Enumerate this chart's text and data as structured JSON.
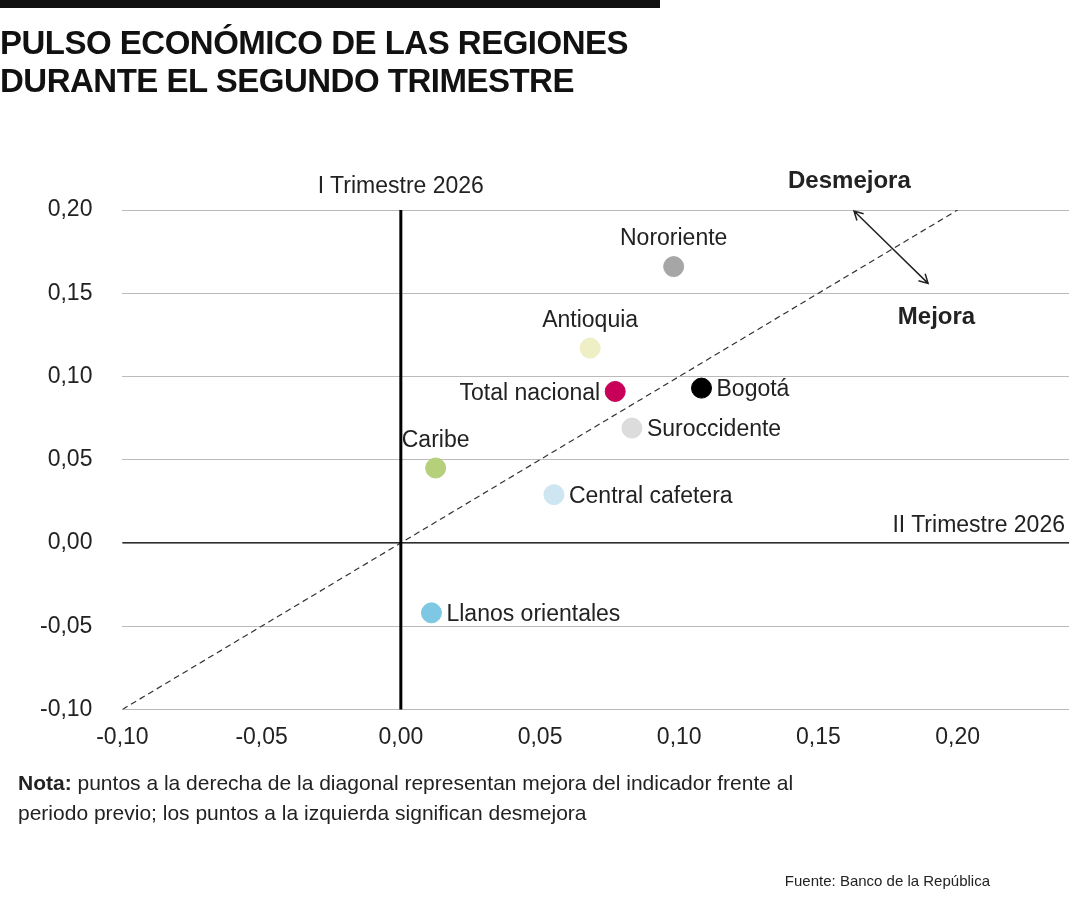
{
  "chart_data": {
    "type": "scatter",
    "title": "PULSO ECONÓMICO DE LAS REGIONES DURANTE EL SEGUNDO TRIMESTRE",
    "xlim": [
      -0.1,
      0.24
    ],
    "ylim": [
      -0.1,
      0.2
    ],
    "xticks": [
      {
        "value": -0.1,
        "label": "-0,10"
      },
      {
        "value": -0.05,
        "label": "-0,05"
      },
      {
        "value": 0,
        "label": "0,00"
      },
      {
        "value": 0.05,
        "label": "0,05"
      },
      {
        "value": 0.1,
        "label": "0,10"
      },
      {
        "value": 0.15,
        "label": "0,15"
      },
      {
        "value": 0.2,
        "label": "0,20"
      }
    ],
    "yticks": [
      {
        "value": -0.1,
        "label": "-0,10"
      },
      {
        "value": -0.05,
        "label": "-0,05"
      },
      {
        "value": 0,
        "label": "0,00"
      },
      {
        "value": 0.05,
        "label": "0,05"
      },
      {
        "value": 0.1,
        "label": "0,10"
      },
      {
        "value": 0.15,
        "label": "0,15"
      },
      {
        "value": 0.2,
        "label": "0,20"
      }
    ],
    "grid": "y",
    "legend": false,
    "marker": "circle",
    "series": [
      {
        "name": "Nororiente",
        "color": "#a6a6a6",
        "x": [
          0.098
        ],
        "values": [
          0.166
        ]
      },
      {
        "name": "Antioquia",
        "color": "#eeefc4",
        "x": [
          0.068
        ],
        "values": [
          0.117
        ]
      },
      {
        "name": "Total nacional",
        "color": "#c8005a",
        "x": [
          0.077
        ],
        "values": [
          0.091
        ]
      },
      {
        "name": "Bogotá",
        "color": "#000000",
        "x": [
          0.108
        ],
        "values": [
          0.093
        ]
      },
      {
        "name": "Suroccidente",
        "color": "#dcdcdc",
        "x": [
          0.083
        ],
        "values": [
          0.069
        ]
      },
      {
        "name": "Caribe",
        "color": "#b5cf7a",
        "x": [
          0.0125
        ],
        "values": [
          0.045
        ]
      },
      {
        "name": "Central cafetera",
        "color": "#cde6f2",
        "x": [
          0.055
        ],
        "values": [
          0.029
        ]
      },
      {
        "name": "Llanos orientales",
        "color": "#7ec8e3",
        "x": [
          0.011
        ],
        "values": [
          -0.042
        ]
      },
      {
        "type": "line",
        "color": "#333333",
        "line_style": "dashed",
        "marker": "none",
        "x": [
          -0.1,
          0.2
        ],
        "values": [
          -0.1,
          0.2
        ]
      }
    ],
    "ref_lines": [
      {
        "axis": "x",
        "value": 0,
        "label": "I Trimestre 2026",
        "color": "#000000"
      },
      {
        "axis": "y",
        "value": 0,
        "label": "II Trimestre 2026",
        "color": "#000000"
      }
    ],
    "annotations": [
      "Desmejora",
      "Mejora",
      "Nota: puntos a la derecha de la diagonal representan mejora del indicador frente al periodo previo; los puntos a la izquierda significan desmejora",
      "Fuente: Banco de la República"
    ]
  }
}
